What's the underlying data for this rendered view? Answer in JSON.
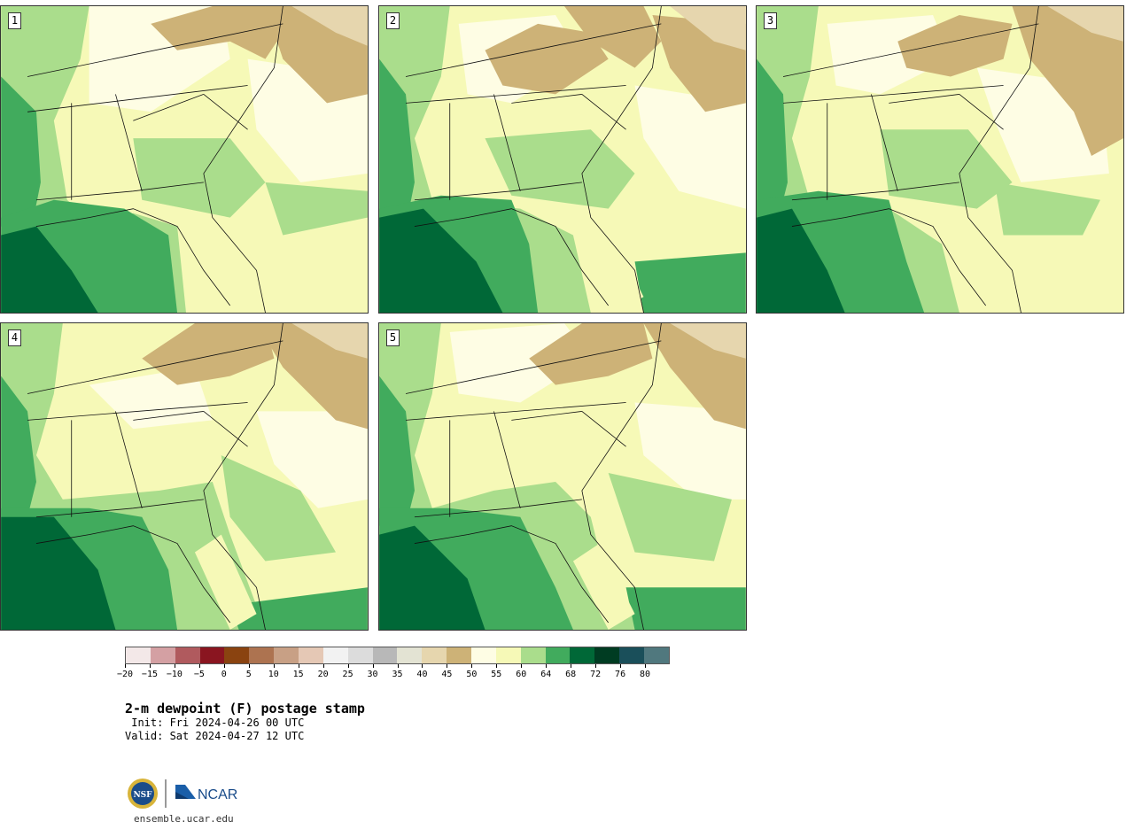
{
  "panels": [
    {
      "label": "1"
    },
    {
      "label": "2"
    },
    {
      "label": "3"
    },
    {
      "label": "4"
    },
    {
      "label": "5"
    }
  ],
  "colorbar": {
    "colors": [
      "#f3e8e8",
      "#d4a0a3",
      "#b05a5e",
      "#8a1520",
      "#8a4310",
      "#ad7350",
      "#c8a085",
      "#e5c8b5",
      "#f2f2f2",
      "#dcdcdc",
      "#b8b8b8",
      "#e3e3d3",
      "#e6d6ae",
      "#cdb277",
      "#fefde4",
      "#f6f9b7",
      "#aadd8c",
      "#41ab5d",
      "#006837",
      "#003c22",
      "#1a4f5a",
      "#50787e"
    ],
    "ticks": [
      "−20",
      "−15",
      "−10",
      "−5",
      "0",
      "5",
      "10",
      "15",
      "20",
      "25",
      "30",
      "35",
      "40",
      "45",
      "50",
      "55",
      "60",
      "64",
      "68",
      "72",
      "76",
      "80"
    ]
  },
  "text": {
    "title": "2-m dewpoint (F) postage stamp",
    "init": " Init: Fri 2024-04-26 00 UTC",
    "valid": "Valid: Sat 2024-04-27 12 UTC",
    "site": "ensemble.ucar.edu",
    "nsf": "NSF",
    "ncar": "NCAR"
  }
}
